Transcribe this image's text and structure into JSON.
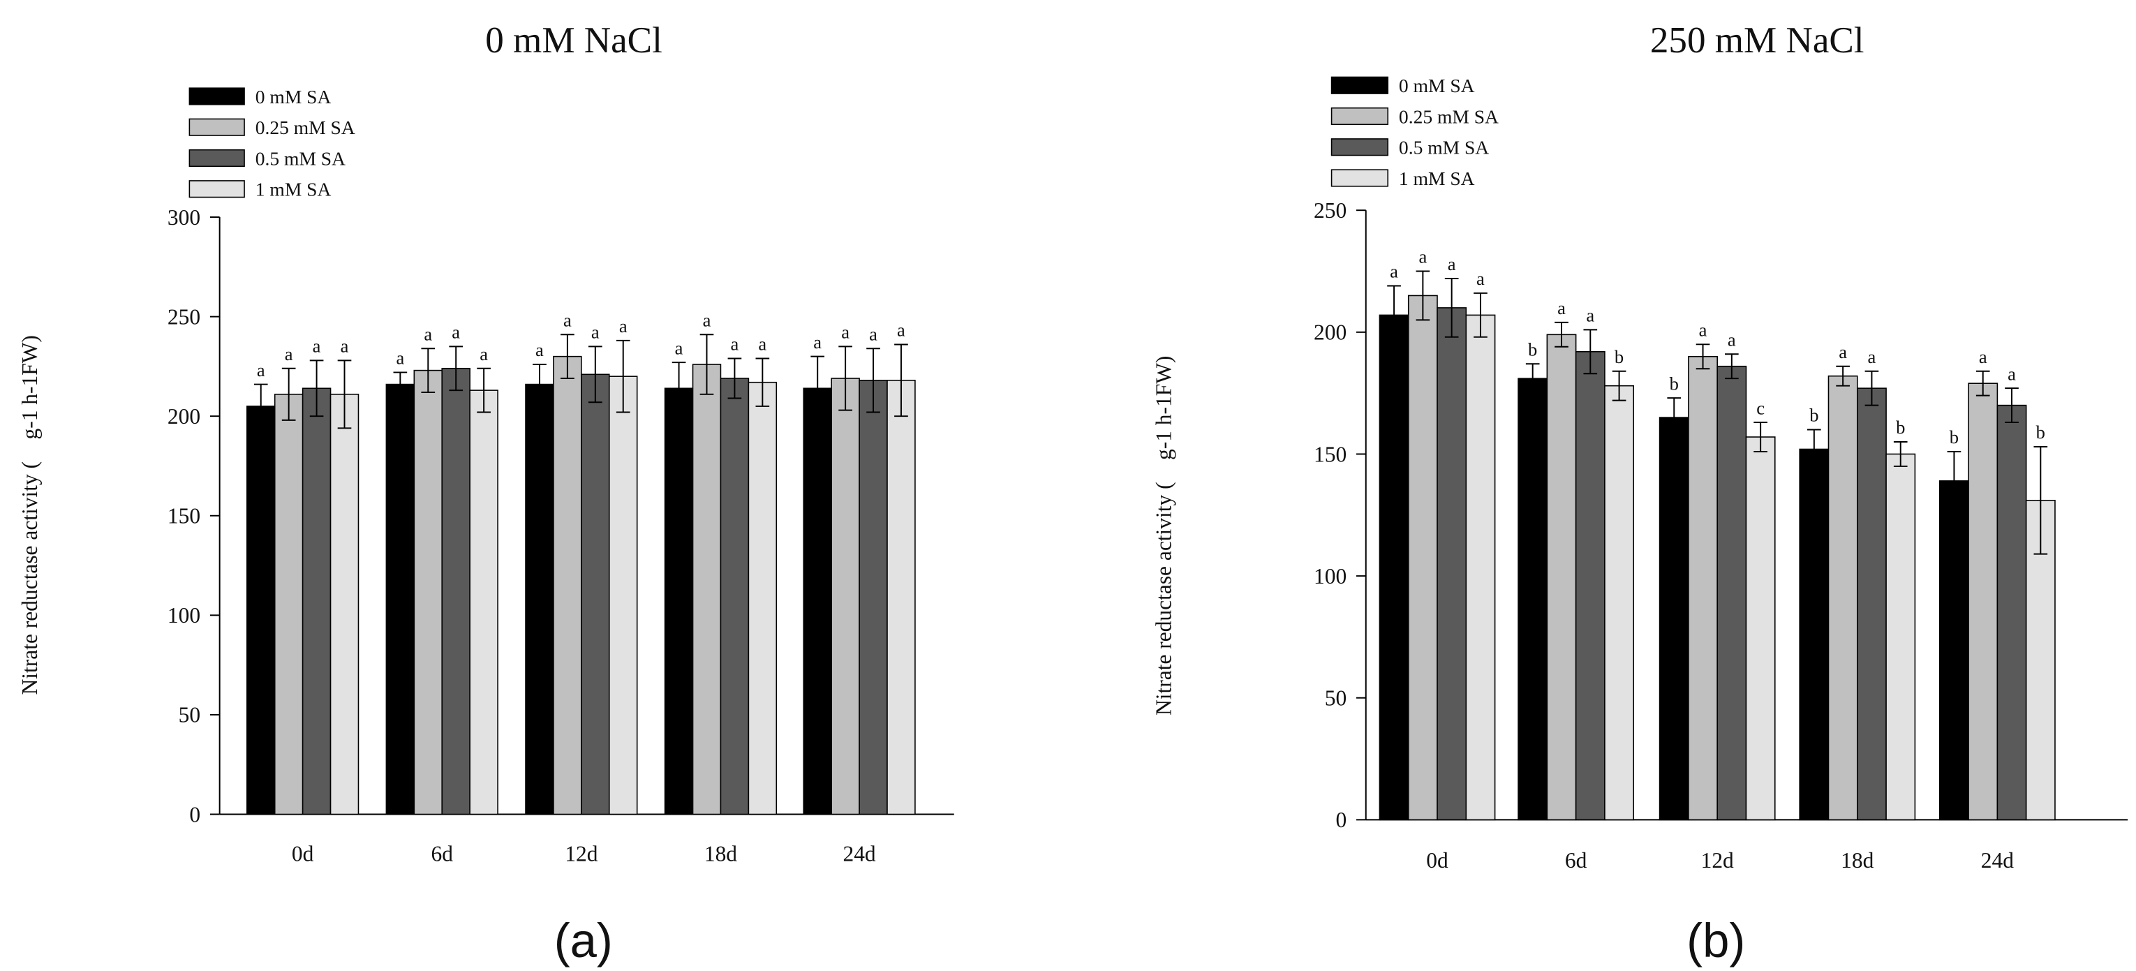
{
  "chart_data": [
    {
      "type": "bar",
      "title": "0 mM NaCl",
      "caption": "(a)",
      "xlabel": "",
      "ylabel": "Nitrate reductase activity (    g-1 h-1FW)",
      "ylim": [
        0,
        300
      ],
      "yticks": [
        0,
        50,
        100,
        150,
        200,
        250,
        300
      ],
      "grid": false,
      "legend_position": "top-left",
      "categories": [
        "0d",
        "6d",
        "12d",
        "18d",
        "24d"
      ],
      "series": [
        {
          "name": "0 mM SA",
          "color": "#000000",
          "values": [
            205,
            216,
            216,
            214,
            214
          ],
          "errors": [
            11,
            6,
            10,
            13,
            16
          ],
          "letters": [
            "a",
            "a",
            "a",
            "a",
            "a"
          ]
        },
        {
          "name": "0.25 mM SA",
          "color": "#c0c0c0",
          "values": [
            211,
            223,
            230,
            226,
            219
          ],
          "errors": [
            13,
            11,
            11,
            15,
            16
          ],
          "letters": [
            "a",
            "a",
            "a",
            "a",
            "a"
          ]
        },
        {
          "name": "0.5 mM SA",
          "color": "#5a5a5a",
          "values": [
            214,
            224,
            221,
            219,
            218
          ],
          "errors": [
            14,
            11,
            14,
            10,
            16
          ],
          "letters": [
            "a",
            "a",
            "a",
            "a",
            "a"
          ]
        },
        {
          "name": "1 mM SA",
          "color": "#e2e2e2",
          "values": [
            211,
            213,
            220,
            217,
            218
          ],
          "errors": [
            17,
            11,
            18,
            12,
            18
          ],
          "letters": [
            "a",
            "a",
            "a",
            "a",
            "a"
          ]
        }
      ]
    },
    {
      "type": "bar",
      "title": "250 mM NaCl",
      "caption": "(b)",
      "xlabel": "",
      "ylabel": "Nitrate reductase activity (    g-1 h-1FW)",
      "ylim": [
        0,
        250
      ],
      "yticks": [
        0,
        50,
        100,
        150,
        200,
        250
      ],
      "grid": false,
      "legend_position": "top-left",
      "categories": [
        "0d",
        "6d",
        "12d",
        "18d",
        "24d"
      ],
      "series": [
        {
          "name": "0 mM SA",
          "color": "#000000",
          "values": [
            207,
            181,
            165,
            152,
            139
          ],
          "errors": [
            12,
            6,
            8,
            8,
            12
          ],
          "letters": [
            "a",
            "b",
            "b",
            "b",
            "b"
          ]
        },
        {
          "name": "0.25 mM SA",
          "color": "#c0c0c0",
          "values": [
            215,
            199,
            190,
            182,
            179
          ],
          "errors": [
            10,
            5,
            5,
            4,
            5
          ],
          "letters": [
            "a",
            "a",
            "a",
            "a",
            "a"
          ]
        },
        {
          "name": "0.5 mM SA",
          "color": "#5a5a5a",
          "values": [
            210,
            192,
            186,
            177,
            170
          ],
          "errors": [
            12,
            9,
            5,
            7,
            7
          ],
          "letters": [
            "a",
            "a",
            "a",
            "a",
            "a"
          ]
        },
        {
          "name": "1 mM SA",
          "color": "#e2e2e2",
          "values": [
            207,
            178,
            157,
            150,
            131
          ],
          "errors": [
            9,
            6,
            6,
            5,
            22
          ],
          "letters": [
            "a",
            "b",
            "c",
            "b",
            "b"
          ]
        }
      ]
    }
  ]
}
